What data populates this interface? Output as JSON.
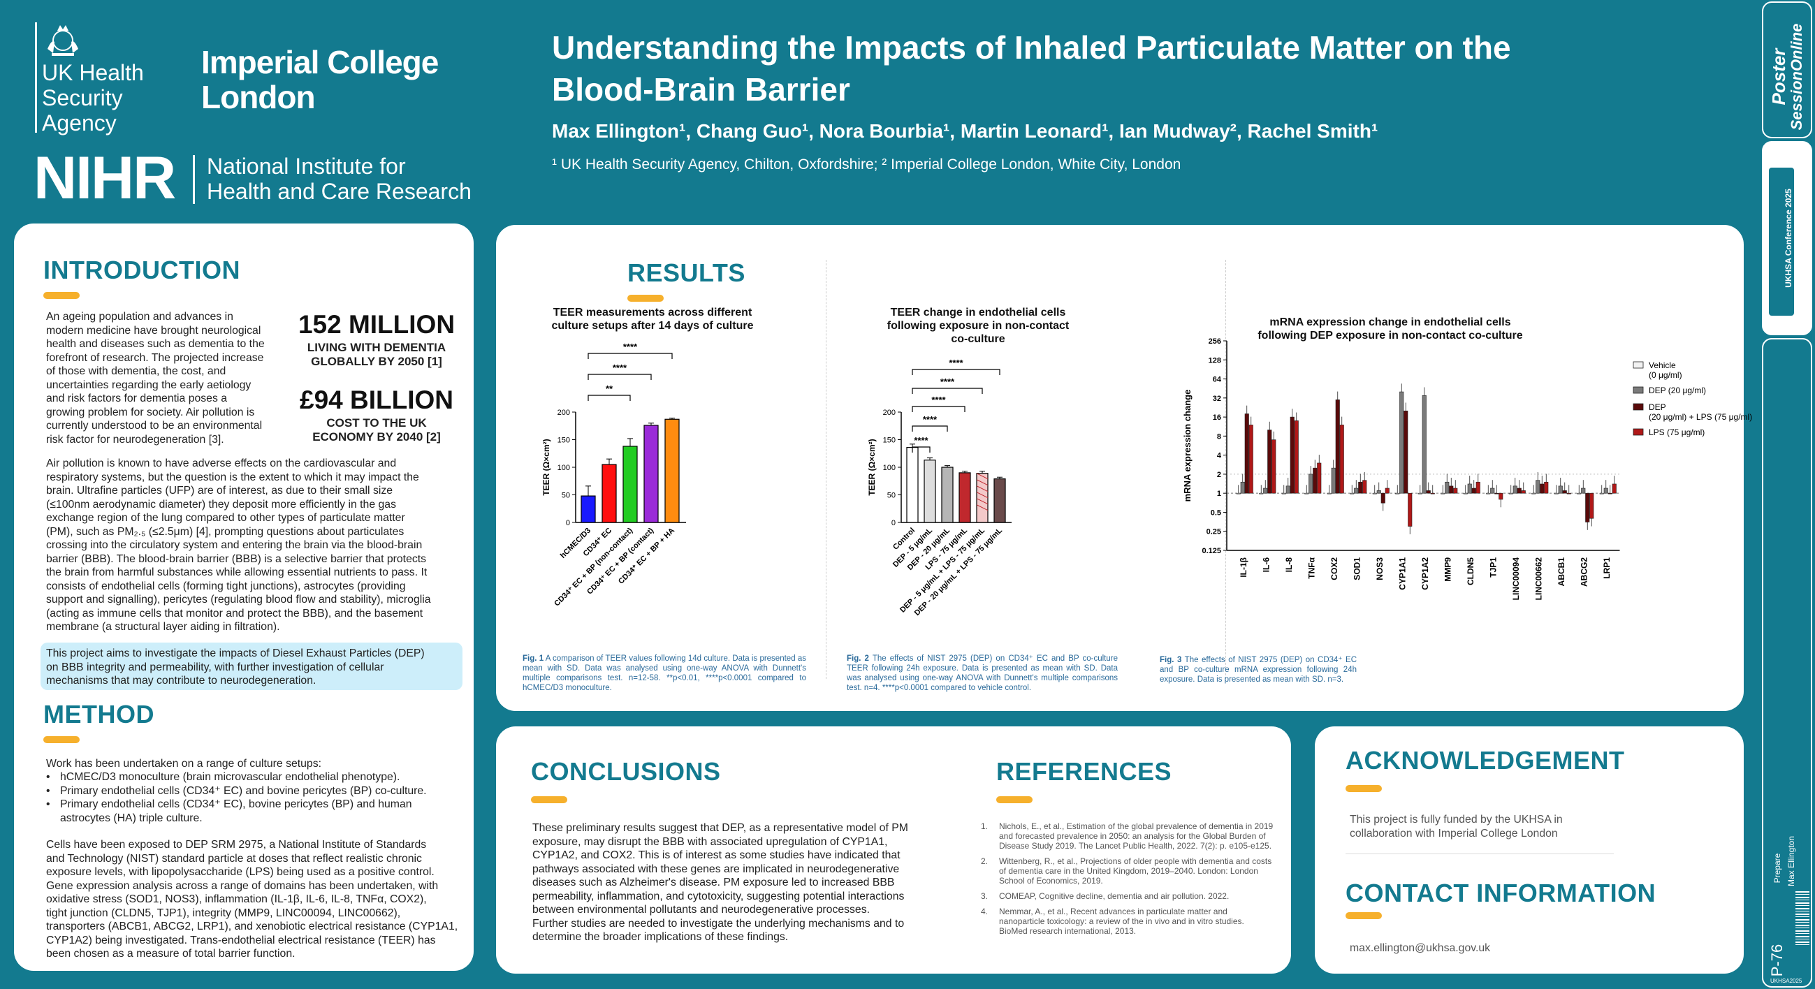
{
  "header": {
    "logos": {
      "ukhsa": [
        "UK Health",
        "Security",
        "Agency"
      ],
      "imperial": [
        "Imperial College",
        "London"
      ],
      "nihr_mark": "NIHR",
      "nihr": [
        "National Institute for",
        "Health and Care Research"
      ]
    },
    "title_line1": "Understanding the Impacts of Inhaled Particulate Matter on the",
    "title_line2": "Blood-Brain Barrier",
    "authors": "Max Ellington¹, Chang Guo¹, Nora Bourbia¹, Martin Leonard¹, Ian Mudway², Rachel Smith¹",
    "affiliations": "¹ UK Health Security Agency, Chilton, Oxfordshire; ² Imperial College London, White City, London"
  },
  "sidebar": {
    "brand_line1": "Poster",
    "brand_line2": "SessionOnline",
    "conference": "UKHSA Conference 2025",
    "prepare": "Prepare",
    "author": "Max Ellington",
    "poster_id": "P-76",
    "code": "UKHSA2025"
  },
  "introduction": {
    "heading": "INTRODUCTION",
    "stat1_value": "152 MILLION",
    "stat1_line1": "LIVING WITH DEMENTIA",
    "stat1_line2": "GLOBALLY BY 2050 [1]",
    "stat2_value": "£94 BILLION",
    "stat2_line1": "COST TO THE UK",
    "stat2_line2": "ECONOMY BY 2040 [2]",
    "para1": [
      "An ageing population and advances in",
      "modern medicine have brought neurological",
      "health and diseases such as dementia to the",
      "forefront of research. The projected increase",
      "of those with dementia, the cost, and",
      "uncertainties regarding the early aetiology",
      "and risk factors for dementia poses a",
      "growing problem for society. Air pollution is",
      "currently understood to be an environmental",
      "risk factor for neurodegeneration [3]."
    ],
    "para2": [
      "Air pollution is known to have adverse effects on the cardiovascular and",
      "respiratory systems, but the question is the extent to which it may impact the",
      "brain. Ultrafine particles (UFP) are of interest, as due to their small size",
      "(≤100nm aerodynamic diameter) they deposit more efficiently in the gas",
      "exchange region of the lung compared to other types of particulate matter",
      "(PM), such as PM₂.₅ (≤2.5μm) [4], prompting questions about particulates",
      "crossing into the circulatory system and entering the brain via the blood-brain",
      "barrier (BBB). The blood-brain barrier (BBB) is a selective barrier that protects",
      "the brain from harmful substances while allowing essential nutrients to pass. It",
      "consists of endothelial cells (forming tight junctions), astrocytes (providing",
      "support and signalling), pericytes (regulating blood flow and stability), microglia",
      "(acting as immune cells that monitor and protect the BBB), and the basement",
      "membrane (a structural layer aiding in filtration)."
    ],
    "aim": [
      "This project aims to investigate the impacts of Diesel Exhaust Particles (DEP)",
      "on BBB integrity and permeability, with further investigation of cellular",
      "mechanisms that may contribute to neurodegeneration."
    ]
  },
  "method": {
    "heading": "METHOD",
    "intro": "Work has been undertaken on a range of culture setups:",
    "bullets": [
      "hCMEC/D3 monoculture (brain microvascular endothelial phenotype).",
      "Primary endothelial cells (CD34⁺ EC) and bovine pericytes (BP) co-culture.",
      "Primary endothelial cells (CD34⁺ EC), bovine pericytes (BP) and human"
    ],
    "bullet3_cont": "astrocytes (HA) triple culture.",
    "para": [
      "Cells have been exposed to DEP SRM 2975, a National Institute of Standards",
      "and Technology (NIST) standard particle at doses that reflect realistic chronic",
      "exposure levels, with lipopolysaccharide (LPS) being used as a positive control.",
      "Gene expression analysis across a range of domains has been undertaken, with",
      "oxidative stress (SOD1, NOS3), inflammation (IL-1β, IL-6, IL-8, TNFα, COX2),",
      "tight junction (CLDN5, TJP1), integrity (MMP9, LINC00094, LINC00662),",
      "transporters (ABCB1, ABCG2, LRP1), and xenobiotic electrical resistance (CYP1A1,",
      "CYP1A2) being investigated. Trans-endothelial electrical resistance (TEER) has",
      "been chosen as a measure of total barrier function."
    ]
  },
  "results": {
    "heading": "RESULTS",
    "fig1_caption_label": "Fig. 1",
    "fig1_caption": "A comparison of TEER values following 14d culture. Data is presented as mean with SD. Data was analysed using one-way ANOVA with Dunnett's multiple comparisons test. n=12-58. **p<0.01, ****p<0.0001 compared to hCMEC/D3 monoculture.",
    "fig2_caption_label": "Fig. 2",
    "fig2_caption": "The effects of NIST 2975 (DEP) on CD34⁺ EC and BP co-culture TEER following 24h exposure. Data is presented as mean with SD. Data was analysed using one-way ANOVA with Dunnett's multiple comparisons test. n=4. ****p<0.0001 compared to vehicle control.",
    "fig3_caption_label": "Fig. 3",
    "fig3_caption": "The effects of NIST 2975 (DEP) on CD34⁺ EC and BP co-culture mRNA expression following 24h exposure. Data is presented as mean with SD. n=3."
  },
  "chart_data": [
    {
      "type": "bar",
      "title": "TEER measurements across different culture setups after 14 days of culture",
      "ylabel": "TEER (Ω×cm²)",
      "ylim": [
        0,
        200
      ],
      "yticks": [
        "0",
        "50",
        "100",
        "150",
        "200"
      ],
      "categories": [
        "hCMEC/D3",
        "CD34⁺ EC",
        "CD34⁺ EC + BP (non-contact)",
        "CD34⁺ EC + BP (contact)",
        "CD34⁺ EC + BP + HA"
      ],
      "values": [
        48,
        105,
        138,
        176,
        187
      ],
      "errors": [
        18,
        10,
        14,
        4,
        2
      ],
      "colors": [
        "#1a1aff",
        "#ff1010",
        "#22cc22",
        "#9a2bd8",
        "#ff8c10"
      ],
      "significance": [
        "**",
        "****",
        "****"
      ]
    },
    {
      "type": "bar",
      "title": "TEER change in endothelial cells following exposure in non-contact co-culture",
      "ylabel": "TEER (Ω×cm²)",
      "ylim": [
        0,
        200
      ],
      "yticks": [
        "0",
        "50",
        "100",
        "150",
        "200"
      ],
      "categories": [
        "Control",
        "DEP - 5 μg/mL",
        "DEP - 20 μg/mL",
        "LPS - 75 μg/mL",
        "DEP - 5 μg/mL + LPS - 75 μg/mL",
        "DEP - 20 μg/mL + LPS - 75 μg/mL"
      ],
      "values": [
        136,
        113,
        100,
        90,
        89,
        79
      ],
      "errors": [
        6,
        4,
        3,
        3,
        4,
        3
      ],
      "significance": [
        "****",
        "****",
        "****",
        "****",
        "****"
      ]
    },
    {
      "type": "bar",
      "title": "mRNA expression change in endothelial cells following DEP exposure in non-contact co-culture",
      "ylabel": "mRNA expression change",
      "scale": "log2",
      "ylim": [
        0.125,
        256
      ],
      "yticks": [
        "256",
        "128",
        "64",
        "32",
        "16",
        "8",
        "4",
        "2",
        "1",
        "0.5",
        "0.25",
        "0.125"
      ],
      "categories": [
        "IL-1β",
        "IL-6",
        "IL-8",
        "TNFα",
        "COX2",
        "SOD1",
        "NOS3",
        "CYP1A1",
        "CYP1A2",
        "MMP9",
        "CLDN5",
        "TJP1",
        "LINC00094",
        "LINC00662",
        "ABCB1",
        "ABCG2",
        "LRP1"
      ],
      "series": [
        {
          "name": "Vehicle (0 μg/ml)",
          "values": [
            1,
            1,
            1,
            1,
            1,
            1,
            1,
            1,
            1,
            1,
            1,
            1,
            1,
            1,
            1,
            1,
            1
          ]
        },
        {
          "name": "DEP (20 μg/ml)",
          "values": [
            1.5,
            1.2,
            1.3,
            2,
            2.5,
            1.2,
            1.1,
            40,
            35,
            1.5,
            1.4,
            1.2,
            1.3,
            1.6,
            1.3,
            1.2,
            1.2
          ]
        },
        {
          "name": "DEP (20 μg/ml) + LPS (75 μg/ml)",
          "values": [
            18,
            10,
            16,
            2.5,
            30,
            1.5,
            0.7,
            20,
            1.1,
            1.3,
            1.2,
            1,
            1.2,
            1.4,
            1.1,
            0.35,
            1
          ]
        },
        {
          "name": "LPS (75 μg/ml)",
          "values": [
            12,
            7,
            14,
            3,
            12,
            1.6,
            1.2,
            0.3,
            1,
            1.2,
            1.5,
            0.8,
            1.1,
            1.5,
            1,
            0.4,
            1.4
          ]
        }
      ],
      "colors": [
        "#f2f2f2",
        "#7a7a7a",
        "#5a0a0a",
        "#b01818"
      ]
    }
  ],
  "conclusions": {
    "heading": "CONCLUSIONS",
    "text": [
      "These preliminary results suggest that DEP, as a representative model of PM",
      "exposure, may disrupt the BBB with associated upregulation of CYP1A1,",
      "CYP1A2, and COX2. This is of interest as some studies have indicated that",
      "pathways associated with these genes are implicated in neurodegenerative",
      "diseases such as Alzheimer's disease. PM exposure led to increased BBB",
      "permeability, inflammation, and cytotoxicity, suggesting potential interactions",
      "between environmental pollutants and neurodegenerative processes.",
      "Further studies are needed to investigate the underlying mechanisms and to",
      "determine the broader implications of these findings."
    ]
  },
  "references": {
    "heading": "REFERENCES",
    "items": [
      [
        "1.",
        "Nichols, E., et al., Estimation of the global prevalence of dementia in 2019",
        "and forecasted prevalence in 2050: an analysis for the Global Burden of",
        "Disease Study 2019. The Lancet Public Health, 2022. 7(2): p. e105-e125."
      ],
      [
        "2.",
        "Wittenberg, R., et al., Projections of older people with dementia and costs",
        "of dementia care in the United Kingdom, 2019–2040. London: London",
        "School of Economics, 2019."
      ],
      [
        "3.",
        "COMEAP, Cognitive decline, dementia and air pollution. 2022."
      ],
      [
        "4.",
        "Nemmar, A., et al., Recent advances in particulate matter and",
        "nanoparticle toxicology: a review of the in vivo and in vitro studies.",
        "BioMed research international, 2013."
      ]
    ]
  },
  "acknowledgement": {
    "heading": "ACKNOWLEDGEMENT",
    "text": [
      "This project is fully funded by the UKHSA in",
      "collaboration with Imperial College London"
    ]
  },
  "contact": {
    "heading": "CONTACT INFORMATION",
    "email": "max.ellington@ukhsa.gov.uk"
  }
}
